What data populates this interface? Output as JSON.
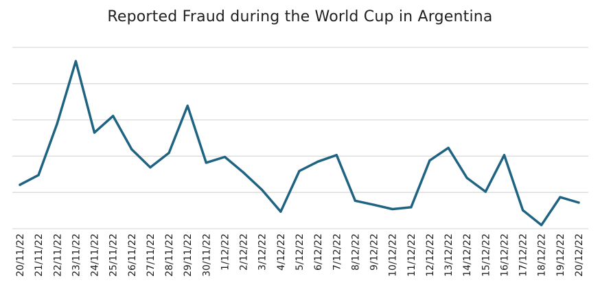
{
  "chart_data": {
    "type": "line",
    "title": "Reported Fraud during the World Cup in Argentina",
    "xlabel": "",
    "ylabel": "",
    "categories": [
      "20/11/22",
      "21/11/22",
      "22/11/22",
      "23/11/22",
      "24/11/22",
      "25/11/22",
      "26/11/22",
      "27/11/22",
      "28/11/22",
      "29/11/22",
      "30/11/22",
      "1/12/22",
      "2/12/22",
      "3/12/22",
      "4/12/22",
      "5/12/22",
      "6/12/22",
      "7/12/22",
      "8/12/22",
      "9/12/22",
      "10/12/22",
      "11/12/22",
      "12/12/22",
      "13/12/22",
      "14/12/22",
      "15/12/22",
      "16/12/22",
      "17/12/22",
      "18/12/22",
      "19/12/22",
      "20/12/22"
    ],
    "series": [
      {
        "values": [
          1.21,
          1.48,
          2.9,
          4.62,
          2.65,
          3.11,
          2.19,
          1.69,
          2.09,
          3.39,
          1.82,
          1.98,
          1.55,
          1.07,
          0.47,
          1.59,
          1.85,
          2.03,
          0.77,
          0.66,
          0.54,
          0.59,
          1.88,
          2.23,
          1.4,
          1.02,
          2.03,
          0.51,
          0.1,
          0.87,
          0.72
        ],
        "color": "#1f6382"
      }
    ],
    "ylim": [
      0,
      5
    ],
    "y_ticks_visible": false,
    "grid": true,
    "legend": "none"
  }
}
